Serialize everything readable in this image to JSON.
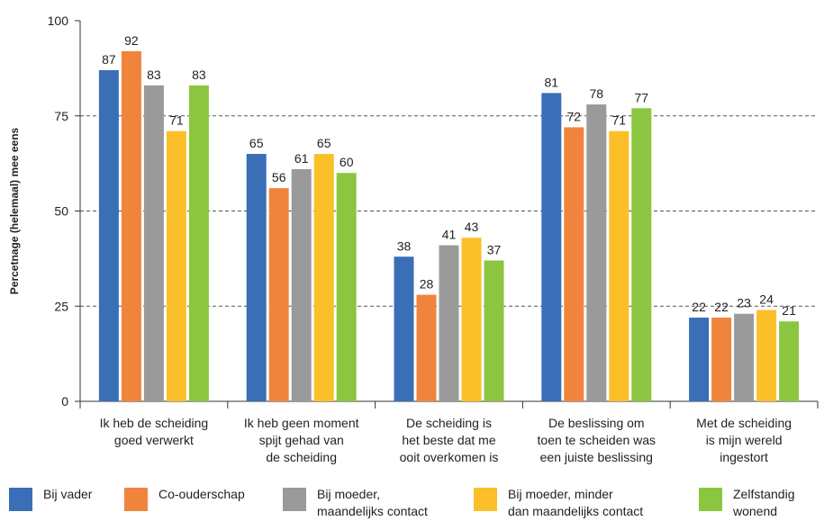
{
  "chart_data": {
    "type": "bar",
    "ylabel": "Percetnage (helemaal) mee eens",
    "ylim": [
      0,
      100
    ],
    "yticks": [
      0,
      25,
      50,
      75,
      100
    ],
    "grid": "dashed horizontal",
    "legend_position": "bottom",
    "categories": [
      "Ik heb de scheiding\ngoed verwerkt",
      "Ik heb geen moment\nspijt gehad van\nde scheiding",
      "De scheiding is\nhet beste dat me\nooit overkomen is",
      "De beslissing om\ntoen te scheiden was\neen juiste beslissing",
      "Met de scheiding\nis mijn wereld\ningestort"
    ],
    "series": [
      {
        "name": "Bij vader",
        "color": "#3a6fb7",
        "values": [
          87,
          65,
          38,
          81,
          22
        ]
      },
      {
        "name": "Co-ouderschap",
        "color": "#f0843c",
        "values": [
          92,
          56,
          28,
          72,
          22
        ]
      },
      {
        "name": "Bij moeder,\nmaandelijks contact",
        "color": "#9a9a9a",
        "values": [
          83,
          61,
          41,
          78,
          23
        ]
      },
      {
        "name": "Bij moeder, minder\ndan maandelijks contact",
        "color": "#fbbf2a",
        "values": [
          71,
          65,
          43,
          71,
          24
        ]
      },
      {
        "name": "Zelfstandig\nwonend",
        "color": "#8cc640",
        "values": [
          83,
          60,
          37,
          77,
          21
        ]
      }
    ]
  }
}
